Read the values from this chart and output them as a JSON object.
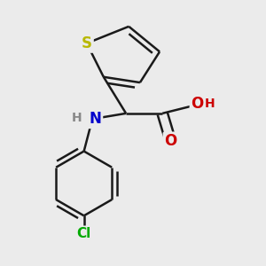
{
  "bg_color": "#ebebeb",
  "bond_color": "#1a1a1a",
  "bond_width": 1.8,
  "atom_colors": {
    "S": "#b8b800",
    "N": "#0000cc",
    "O": "#cc0000",
    "Cl": "#00aa00"
  },
  "figsize": [
    3.0,
    3.0
  ],
  "dpi": 100
}
